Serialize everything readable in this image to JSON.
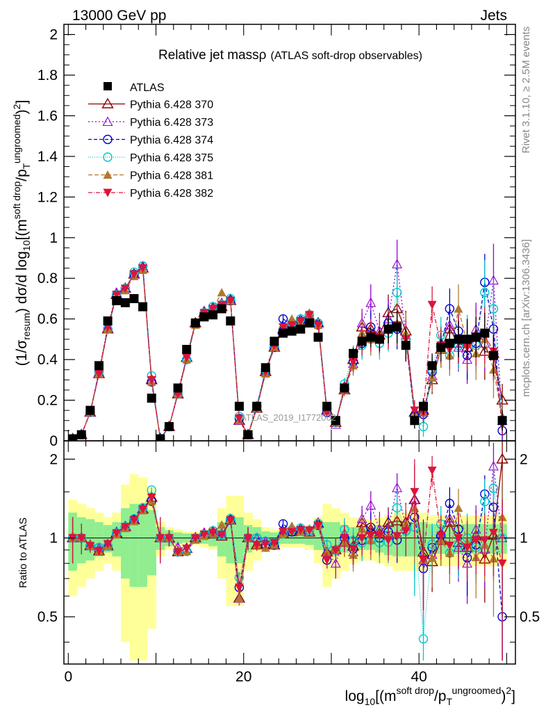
{
  "header": {
    "left": "13000 GeV pp",
    "right": "Jets"
  },
  "side": {
    "rivet": "Rivet 3.1.10, ≥ 2.5M events",
    "mcplots": "mcplots.cern.ch [arXiv:1306.3436]"
  },
  "watermark": "ATLAS_2019_I1772062",
  "chart_data": {
    "type": "scatter",
    "title": "Relative jet massρ",
    "subtitle": "(ATLAS soft-drop observables)",
    "ylabel": "(1/σ_resum) dσ/d log10[(m^soft drop/pT^ungroomed)^2]",
    "xlabel": "log10[(m^soft drop/pT^ungroomed)^2]",
    "ratio_ylabel": "Ratio to ATLAS",
    "xlim": [
      -0.5,
      51
    ],
    "ylim": [
      0,
      2.05
    ],
    "ratio_ylim": [
      0.33,
      2.35
    ],
    "main_yticks": [
      "0",
      "0.2",
      "0.4",
      "0.6",
      "0.8",
      "1",
      "1.2",
      "1.4",
      "1.6",
      "1.8",
      "2"
    ],
    "ratio_yticks": [
      "0.5",
      "1",
      "2"
    ],
    "xticks": [
      "0",
      "20",
      "40"
    ],
    "legend_position": "top-left",
    "grid": false,
    "x": [
      0.5,
      1.5,
      2.5,
      3.5,
      4.5,
      5.5,
      6.5,
      7.5,
      8.5,
      9.5,
      10.5,
      11.5,
      12.5,
      13.5,
      14.5,
      15.5,
      16.5,
      17.5,
      18.5,
      19.5,
      20.5,
      21.5,
      22.5,
      23.5,
      24.5,
      25.5,
      26.5,
      27.5,
      28.5,
      29.5,
      30.5,
      31.5,
      32.5,
      33.5,
      34.5,
      35.5,
      36.5,
      37.5,
      38.5,
      39.5,
      40.5,
      41.5,
      42.5,
      43.5,
      44.5,
      45.5,
      46.5,
      47.5,
      48.5,
      49.5
    ],
    "atlas": [
      0.01,
      0.03,
      0.15,
      0.37,
      0.59,
      0.69,
      0.68,
      0.7,
      0.66,
      0.21,
      0.01,
      0.07,
      0.26,
      0.45,
      0.58,
      0.61,
      0.62,
      0.65,
      0.59,
      0.17,
      0.03,
      0.17,
      0.36,
      0.49,
      0.53,
      0.54,
      0.55,
      0.58,
      0.51,
      0.17,
      0.1,
      0.26,
      0.43,
      0.49,
      0.51,
      0.5,
      0.55,
      0.56,
      0.47,
      0.1,
      0.17,
      0.37,
      0.46,
      0.48,
      0.5,
      0.5,
      0.51,
      0.53,
      0.42,
      0.1
    ],
    "atlas_err": [
      0.005,
      0.008,
      0.015,
      0.02,
      0.02,
      0.02,
      0.02,
      0.02,
      0.02,
      0.01,
      0.005,
      0.008,
      0.015,
      0.02,
      0.02,
      0.02,
      0.02,
      0.02,
      0.02,
      0.01,
      0.005,
      0.01,
      0.015,
      0.02,
      0.02,
      0.02,
      0.02,
      0.02,
      0.02,
      0.01,
      0.01,
      0.02,
      0.03,
      0.04,
      0.05,
      0.06,
      0.07,
      0.08,
      0.08,
      0.04,
      0.04,
      0.06,
      0.07,
      0.08,
      0.09,
      0.1,
      0.1,
      0.1,
      0.1,
      0.05
    ],
    "band_yellow": [
      0.4,
      0.35,
      0.3,
      0.25,
      0.2,
      0.25,
      0.6,
      0.75,
      0.7,
      0.55,
      0.15,
      0.1,
      0.08,
      0.06,
      0.06,
      0.08,
      0.1,
      0.3,
      0.45,
      0.45,
      0.25,
      0.18,
      0.1,
      0.08,
      0.08,
      0.08,
      0.08,
      0.1,
      0.2,
      0.35,
      0.3,
      0.25,
      0.2,
      0.18,
      0.18,
      0.2,
      0.22,
      0.25,
      0.25,
      0.25,
      0.25,
      0.22,
      0.22,
      0.22,
      0.22,
      0.22,
      0.22,
      0.22,
      0.22,
      0.22
    ],
    "band_green": [
      0.25,
      0.2,
      0.18,
      0.15,
      0.12,
      0.15,
      0.3,
      0.35,
      0.35,
      0.28,
      0.1,
      0.07,
      0.05,
      0.04,
      0.04,
      0.05,
      0.07,
      0.15,
      0.2,
      0.2,
      0.12,
      0.1,
      0.06,
      0.05,
      0.05,
      0.05,
      0.05,
      0.06,
      0.1,
      0.15,
      0.15,
      0.12,
      0.1,
      0.1,
      0.1,
      0.12,
      0.14,
      0.15,
      0.15,
      0.15,
      0.15,
      0.13,
      0.13,
      0.13,
      0.13,
      0.13,
      0.13,
      0.13,
      0.13,
      0.13
    ],
    "series": [
      {
        "name": "Pythia 6.428 370",
        "color": "#8b0000",
        "dash": "",
        "marker": "triangle-open",
        "values": [
          0.01,
          0.03,
          0.14,
          0.33,
          0.55,
          0.72,
          0.75,
          0.82,
          0.85,
          0.3,
          0.01,
          0.07,
          0.23,
          0.41,
          0.58,
          0.63,
          0.65,
          0.66,
          0.69,
          0.1,
          0.03,
          0.16,
          0.34,
          0.46,
          0.55,
          0.57,
          0.59,
          0.61,
          0.58,
          0.15,
          0.09,
          0.25,
          0.4,
          0.56,
          0.55,
          0.52,
          0.63,
          0.65,
          0.54,
          0.14,
          0.15,
          0.3,
          0.45,
          0.55,
          0.48,
          0.46,
          0.52,
          0.44,
          0.43,
          0.2
        ],
        "errs": [
          0.002,
          0.004,
          0.008,
          0.01,
          0.01,
          0.012,
          0.012,
          0.012,
          0.012,
          0.008,
          0.002,
          0.005,
          0.008,
          0.01,
          0.012,
          0.012,
          0.012,
          0.012,
          0.012,
          0.006,
          0.003,
          0.008,
          0.012,
          0.015,
          0.02,
          0.02,
          0.02,
          0.02,
          0.02,
          0.01,
          0.01,
          0.03,
          0.05,
          0.07,
          0.08,
          0.08,
          0.09,
          0.1,
          0.1,
          0.05,
          0.05,
          0.07,
          0.09,
          0.1,
          0.12,
          0.12,
          0.13,
          0.14,
          0.14,
          0.08
        ]
      },
      {
        "name": "Pythia 6.428 373",
        "color": "#9400d3",
        "dash": "2,3",
        "marker": "triangle-open-small",
        "values": [
          0.01,
          0.03,
          0.14,
          0.34,
          0.56,
          0.73,
          0.75,
          0.82,
          0.86,
          0.3,
          0.01,
          0.07,
          0.24,
          0.41,
          0.58,
          0.64,
          0.66,
          0.68,
          0.7,
          0.1,
          0.03,
          0.17,
          0.35,
          0.47,
          0.56,
          0.58,
          0.6,
          0.62,
          0.58,
          0.15,
          0.08,
          0.27,
          0.38,
          0.58,
          0.68,
          0.54,
          0.6,
          0.87,
          0.52,
          0.14,
          0.14,
          0.32,
          0.48,
          0.57,
          0.46,
          0.4,
          0.55,
          0.48,
          0.79,
          0.1
        ],
        "errs": [
          0.002,
          0.004,
          0.008,
          0.01,
          0.01,
          0.012,
          0.012,
          0.012,
          0.012,
          0.008,
          0.002,
          0.005,
          0.008,
          0.01,
          0.012,
          0.012,
          0.012,
          0.012,
          0.012,
          0.006,
          0.003,
          0.008,
          0.012,
          0.015,
          0.02,
          0.02,
          0.02,
          0.02,
          0.02,
          0.01,
          0.01,
          0.03,
          0.05,
          0.07,
          0.09,
          0.09,
          0.1,
          0.12,
          0.1,
          0.05,
          0.05,
          0.07,
          0.09,
          0.1,
          0.12,
          0.12,
          0.13,
          0.14,
          0.18,
          0.08
        ]
      },
      {
        "name": "Pythia 6.428 374",
        "color": "#0000cd",
        "dash": "5,3",
        "marker": "circle-open",
        "values": [
          0.01,
          0.03,
          0.14,
          0.34,
          0.55,
          0.72,
          0.75,
          0.82,
          0.86,
          0.29,
          0.01,
          0.07,
          0.23,
          0.4,
          0.58,
          0.63,
          0.66,
          0.67,
          0.69,
          0.11,
          0.03,
          0.17,
          0.34,
          0.46,
          0.6,
          0.57,
          0.59,
          0.62,
          0.57,
          0.14,
          0.09,
          0.26,
          0.39,
          0.48,
          0.56,
          0.5,
          0.58,
          0.55,
          0.5,
          0.12,
          0.13,
          0.34,
          0.47,
          0.65,
          0.54,
          0.42,
          0.48,
          0.78,
          0.55,
          0.05
        ],
        "errs": [
          0.002,
          0.004,
          0.008,
          0.01,
          0.01,
          0.012,
          0.012,
          0.012,
          0.012,
          0.008,
          0.002,
          0.005,
          0.008,
          0.01,
          0.012,
          0.012,
          0.012,
          0.012,
          0.012,
          0.006,
          0.003,
          0.008,
          0.012,
          0.015,
          0.02,
          0.02,
          0.02,
          0.02,
          0.02,
          0.01,
          0.01,
          0.03,
          0.05,
          0.07,
          0.08,
          0.08,
          0.09,
          0.1,
          0.1,
          0.05,
          0.05,
          0.07,
          0.09,
          0.1,
          0.12,
          0.12,
          0.13,
          0.14,
          0.14,
          0.06
        ]
      },
      {
        "name": "Pythia 6.428 375",
        "color": "#00c8c8",
        "dash": "1,2",
        "marker": "circle-open-teal",
        "values": [
          0.01,
          0.03,
          0.14,
          0.34,
          0.55,
          0.72,
          0.75,
          0.83,
          0.86,
          0.32,
          0.01,
          0.07,
          0.23,
          0.4,
          0.58,
          0.63,
          0.66,
          0.67,
          0.7,
          0.12,
          0.03,
          0.17,
          0.35,
          0.47,
          0.55,
          0.58,
          0.6,
          0.62,
          0.58,
          0.16,
          0.09,
          0.28,
          0.42,
          0.47,
          0.5,
          0.48,
          0.53,
          0.73,
          0.5,
          0.11,
          0.07,
          0.35,
          0.52,
          0.42,
          0.47,
          0.5,
          0.47,
          0.73,
          0.65,
          0.1
        ],
        "errs": [
          0.002,
          0.004,
          0.008,
          0.01,
          0.01,
          0.012,
          0.012,
          0.012,
          0.012,
          0.008,
          0.002,
          0.005,
          0.008,
          0.01,
          0.012,
          0.012,
          0.012,
          0.012,
          0.012,
          0.006,
          0.003,
          0.008,
          0.012,
          0.015,
          0.02,
          0.02,
          0.02,
          0.02,
          0.02,
          0.01,
          0.01,
          0.03,
          0.05,
          0.07,
          0.08,
          0.08,
          0.09,
          0.12,
          0.1,
          0.05,
          0.05,
          0.07,
          0.09,
          0.1,
          0.12,
          0.12,
          0.13,
          0.16,
          0.14,
          0.06
        ]
      },
      {
        "name": "Pythia 6.428 381",
        "color": "#b07830",
        "dash": "6,3",
        "marker": "triangle-filled",
        "values": [
          0.01,
          0.03,
          0.14,
          0.33,
          0.55,
          0.71,
          0.74,
          0.81,
          0.84,
          0.29,
          0.01,
          0.07,
          0.23,
          0.4,
          0.57,
          0.62,
          0.65,
          0.73,
          0.69,
          0.1,
          0.03,
          0.16,
          0.33,
          0.46,
          0.55,
          0.6,
          0.58,
          0.63,
          0.57,
          0.15,
          0.09,
          0.25,
          0.37,
          0.53,
          0.5,
          0.52,
          0.56,
          0.58,
          0.53,
          0.13,
          0.14,
          0.31,
          0.45,
          0.42,
          0.65,
          0.48,
          0.43,
          0.5,
          0.35,
          0.12
        ],
        "errs": [
          0.002,
          0.004,
          0.008,
          0.01,
          0.01,
          0.012,
          0.012,
          0.012,
          0.012,
          0.008,
          0.002,
          0.005,
          0.008,
          0.01,
          0.012,
          0.012,
          0.012,
          0.012,
          0.012,
          0.006,
          0.003,
          0.008,
          0.012,
          0.015,
          0.02,
          0.02,
          0.02,
          0.02,
          0.02,
          0.01,
          0.01,
          0.03,
          0.05,
          0.07,
          0.08,
          0.08,
          0.09,
          0.1,
          0.1,
          0.05,
          0.05,
          0.07,
          0.09,
          0.1,
          0.12,
          0.12,
          0.13,
          0.14,
          0.14,
          0.06
        ]
      },
      {
        "name": "Pythia 6.428 382",
        "color": "#dc143c",
        "dash": "6,2,1,2",
        "marker": "triangle-down-filled",
        "values": [
          0.01,
          0.03,
          0.14,
          0.33,
          0.56,
          0.72,
          0.75,
          0.82,
          0.85,
          0.3,
          0.01,
          0.07,
          0.23,
          0.41,
          0.58,
          0.63,
          0.65,
          0.67,
          0.69,
          0.11,
          0.03,
          0.16,
          0.34,
          0.47,
          0.56,
          0.57,
          0.59,
          0.62,
          0.57,
          0.14,
          0.09,
          0.26,
          0.39,
          0.49,
          0.52,
          0.51,
          0.54,
          0.57,
          0.5,
          0.15,
          0.14,
          0.67,
          0.47,
          0.45,
          0.5,
          0.46,
          0.5,
          0.52,
          0.44,
          0.08
        ],
        "errs": [
          0.002,
          0.004,
          0.008,
          0.01,
          0.01,
          0.012,
          0.012,
          0.012,
          0.012,
          0.008,
          0.002,
          0.005,
          0.008,
          0.01,
          0.012,
          0.012,
          0.012,
          0.012,
          0.012,
          0.006,
          0.003,
          0.008,
          0.012,
          0.015,
          0.02,
          0.02,
          0.02,
          0.02,
          0.02,
          0.01,
          0.01,
          0.03,
          0.05,
          0.07,
          0.08,
          0.08,
          0.09,
          0.1,
          0.1,
          0.05,
          0.05,
          0.09,
          0.09,
          0.1,
          0.12,
          0.12,
          0.13,
          0.14,
          0.14,
          0.06
        ]
      }
    ]
  }
}
